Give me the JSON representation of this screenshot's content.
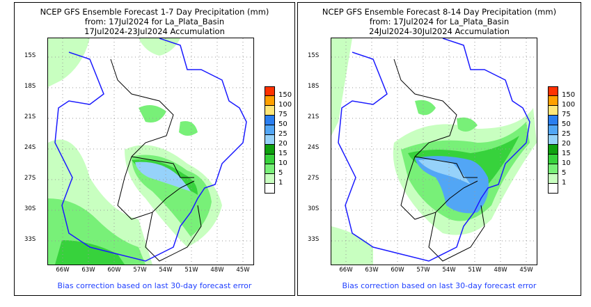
{
  "panels": [
    {
      "title": [
        "NCEP GFS Ensemble Forecast 1-7 Day Precipitation (mm)",
        "from: 17Jul2024   for La_Plata_Basin",
        "17Jul2024-23Jul2024 Accumulation"
      ],
      "note": "Bias correction based on last 30-day forecast error"
    },
    {
      "title": [
        "NCEP GFS Ensemble Forecast 8-14 Day Precipitation (mm)",
        "from: 17Jul2024   for La_Plata_Basin",
        "24Jul2024-30Jul2024 Accumulation"
      ],
      "note": "Bias correction based on last 30-day forecast error"
    }
  ],
  "lat_labels": [
    "15S",
    "18S",
    "21S",
    "24S",
    "27S",
    "30S",
    "33S"
  ],
  "lon_labels": [
    "66W",
    "63W",
    "60W",
    "57W",
    "54W",
    "51W",
    "48W",
    "45W"
  ],
  "legend": {
    "labels": [
      "150",
      "100",
      "75",
      "50",
      "25",
      "20",
      "15",
      "10",
      "5",
      "1"
    ],
    "colors": [
      "#ff3200",
      "#ffa000",
      "#ffe678",
      "#2a7ef0",
      "#52a6f5",
      "#96d2fa",
      "#0fa00f",
      "#37d23c",
      "#78f078",
      "#c8ffc0",
      "#ffffff"
    ]
  },
  "colors": {
    "basin": "#1a1aff",
    "border": "#000000",
    "note": "#1f3fff"
  }
}
